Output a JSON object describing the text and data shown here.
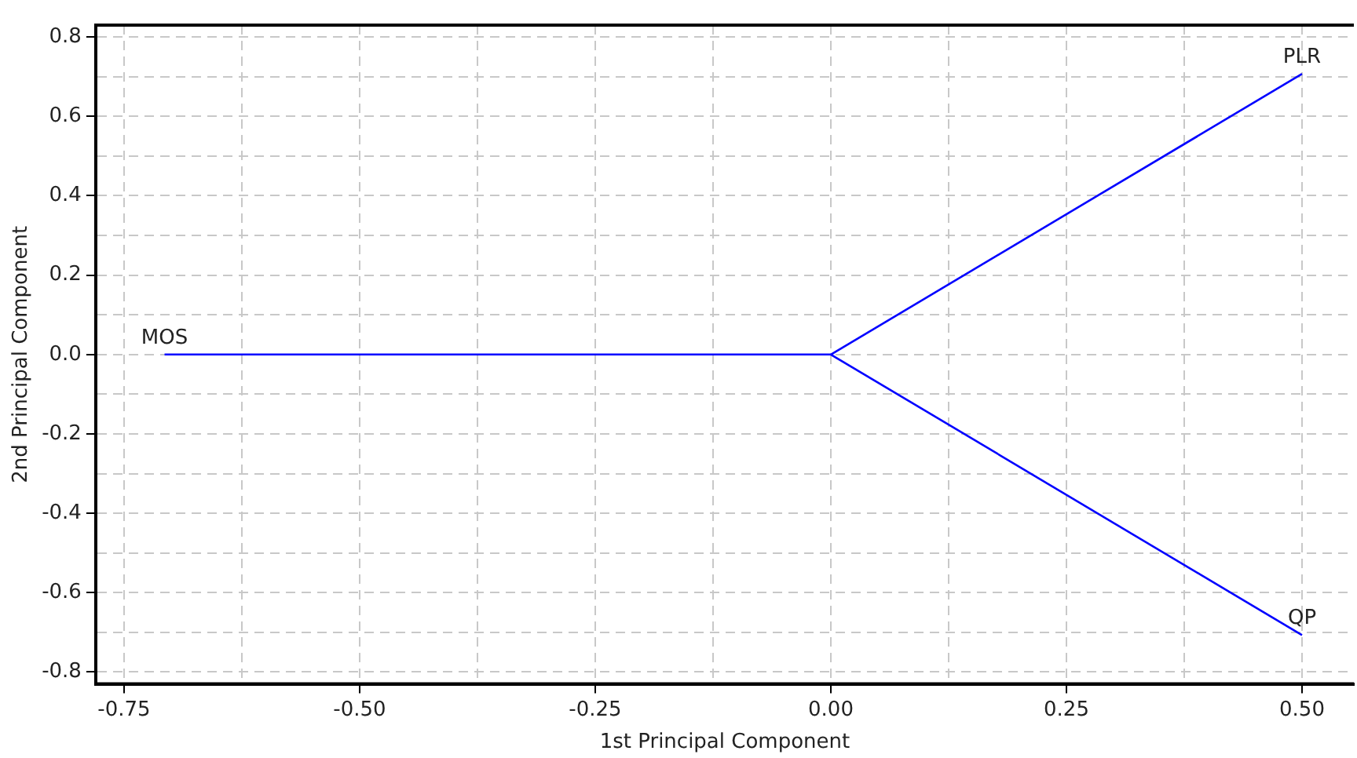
{
  "chart_data": {
    "type": "line",
    "xlabel": "1st Principal Component",
    "ylabel": "2nd Principal Component",
    "series": [
      {
        "name": "MOS",
        "color": "#0000ff",
        "x": [
          0,
          -0.707
        ],
        "values": [
          0,
          0
        ]
      },
      {
        "name": "PLR",
        "color": "#0000ff",
        "x": [
          0,
          0.5
        ],
        "values": [
          0,
          0.707
        ]
      },
      {
        "name": "QP",
        "color": "#0000ff",
        "x": [
          0,
          0.5
        ],
        "values": [
          0,
          -0.707
        ]
      }
    ],
    "xlim": [
      -0.78,
      0.555
    ],
    "ylim": [
      -0.83,
      0.83
    ],
    "xticks": [
      -0.75,
      {
        "value": -0.625,
        "label": null
      },
      {
        "value": -0.5,
        "label": "-0.50"
      },
      {
        "value": -0.375,
        "label": null
      },
      -0.25,
      {
        "value": -0.125,
        "label": null
      },
      {
        "value": 0,
        "label": "0.00"
      },
      {
        "value": 0.125,
        "label": null
      },
      0.25,
      {
        "value": 0.375,
        "label": null
      },
      {
        "value": 0.5,
        "label": "0.50"
      }
    ],
    "yticks": [
      -0.8,
      {
        "value": -0.7,
        "label": null
      },
      -0.6,
      {
        "value": -0.5,
        "label": null
      },
      -0.4,
      {
        "value": -0.3,
        "label": null
      },
      -0.2,
      {
        "value": -0.1,
        "label": null
      },
      {
        "value": 0,
        "label": "0.0"
      },
      {
        "value": 0.1,
        "label": null
      },
      0.2,
      {
        "value": 0.3,
        "label": null
      },
      0.4,
      {
        "value": 0.5,
        "label": null
      },
      0.6,
      {
        "value": 0.7,
        "label": null
      },
      0.8
    ],
    "grid": true,
    "legend": false,
    "marker": "none",
    "line_style": "solid"
  }
}
